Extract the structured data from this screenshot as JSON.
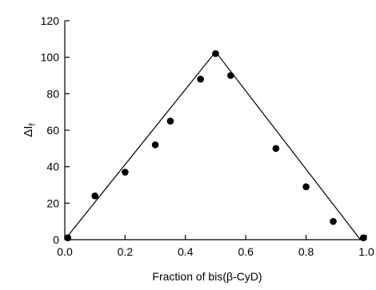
{
  "chart_data": {
    "type": "scatter",
    "xlabel": "Fraction of bis(β-CyD)",
    "ylabel_main": "ΔI",
    "ylabel_sub": "f",
    "xlim": [
      0,
      1.0
    ],
    "ylim": [
      0,
      120
    ],
    "x_ticks": [
      {
        "value": 0,
        "label": "0.0"
      },
      {
        "value": 0.2,
        "label": "0.2"
      },
      {
        "value": 0.4,
        "label": "0.4"
      },
      {
        "value": 0.6,
        "label": "0.6"
      },
      {
        "value": 0.8,
        "label": "0.8"
      },
      {
        "value": 1.0,
        "label": "1.0"
      }
    ],
    "y_ticks": [
      {
        "value": 0,
        "label": "0"
      },
      {
        "value": 20,
        "label": "20"
      },
      {
        "value": 40,
        "label": "40"
      },
      {
        "value": 60,
        "label": "60"
      },
      {
        "value": 80,
        "label": "80"
      },
      {
        "value": 100,
        "label": "100"
      },
      {
        "value": 120,
        "label": "120"
      }
    ],
    "grid": false,
    "series": [
      {
        "points": [
          {
            "x": 0.01,
            "y": 1
          },
          {
            "x": 0.1,
            "y": 24
          },
          {
            "x": 0.2,
            "y": 37
          },
          {
            "x": 0.3,
            "y": 52
          },
          {
            "x": 0.35,
            "y": 65
          },
          {
            "x": 0.45,
            "y": 88
          },
          {
            "x": 0.5,
            "y": 102
          },
          {
            "x": 0.55,
            "y": 90
          },
          {
            "x": 0.7,
            "y": 50
          },
          {
            "x": 0.8,
            "y": 29
          },
          {
            "x": 0.89,
            "y": 10
          },
          {
            "x": 0.99,
            "y": 1
          }
        ]
      }
    ],
    "fit_lines": [
      {
        "from": {
          "x": 0,
          "y": 0
        },
        "to": {
          "x": 0.5,
          "y": 103
        }
      },
      {
        "from": {
          "x": 0.5,
          "y": 103
        },
        "to": {
          "x": 0.98,
          "y": 0
        }
      }
    ]
  }
}
